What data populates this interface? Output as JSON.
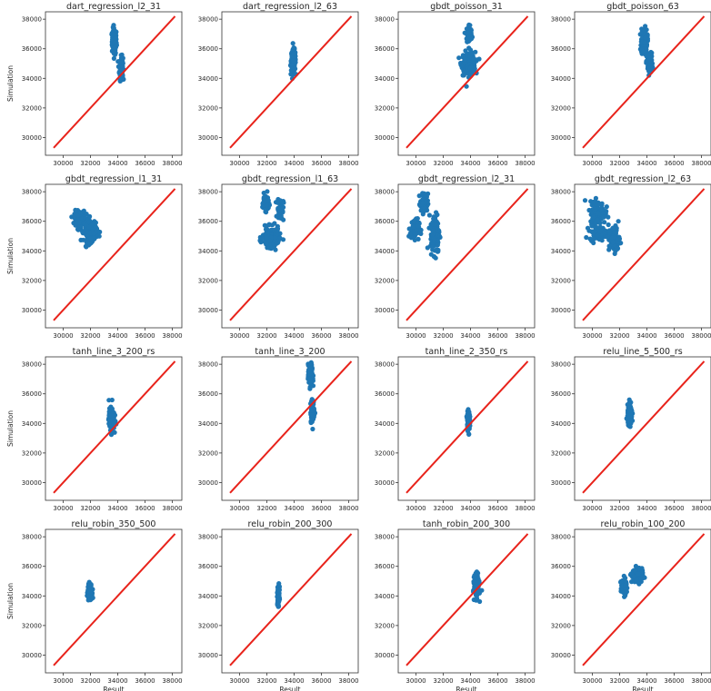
{
  "colors": {
    "scatter": "#1f77b4",
    "line": "#e8231b",
    "axes": "#333333"
  },
  "axis_labels": {
    "x": "Result",
    "y": "Simulation"
  },
  "chart_data": [
    {
      "type": "scatter",
      "title": "dart_regression_l2_31",
      "xlabel": "",
      "ylabel": "Simulation",
      "xlim": [
        28700,
        38700
      ],
      "ylim": [
        28800,
        38500
      ],
      "xticks": [
        30000,
        32000,
        34000,
        36000,
        38000
      ],
      "yticks": [
        30000,
        32000,
        34000,
        36000,
        38000
      ],
      "clusters": [
        {
          "cx": 33750,
          "cy": 36500,
          "sx": 150,
          "sy": 800,
          "n": 140
        },
        {
          "cx": 34250,
          "cy": 34700,
          "sx": 120,
          "sy": 700,
          "n": 110
        }
      ],
      "identity_line": [
        29300,
        38200
      ],
      "grid": false
    },
    {
      "type": "scatter",
      "title": "dart_regression_l2_63",
      "xlabel": "",
      "ylabel": "",
      "xlim": [
        28700,
        38700
      ],
      "ylim": [
        28800,
        38500
      ],
      "xticks": [
        30000,
        32000,
        34000,
        36000,
        38000
      ],
      "yticks": [
        30000,
        32000,
        34000,
        36000,
        38000
      ],
      "clusters": [
        {
          "cx": 33950,
          "cy": 35200,
          "sx": 150,
          "sy": 650,
          "n": 200
        }
      ],
      "identity_line": [
        29300,
        38200
      ],
      "grid": false
    },
    {
      "type": "scatter",
      "title": "gbdt_poisson_31",
      "xlabel": "",
      "ylabel": "",
      "xlim": [
        28700,
        38700
      ],
      "ylim": [
        28800,
        38500
      ],
      "xticks": [
        30000,
        32000,
        34000,
        36000,
        38000
      ],
      "yticks": [
        30000,
        32000,
        34000,
        36000,
        38000
      ],
      "clusters": [
        {
          "cx": 33850,
          "cy": 35000,
          "sx": 450,
          "sy": 700,
          "n": 180
        },
        {
          "cx": 33900,
          "cy": 37000,
          "sx": 200,
          "sy": 600,
          "n": 60
        }
      ],
      "identity_line": [
        29300,
        38200
      ],
      "grid": false
    },
    {
      "type": "scatter",
      "title": "gbdt_poisson_63",
      "xlabel": "",
      "ylabel": "",
      "xlim": [
        28700,
        38700
      ],
      "ylim": [
        28800,
        38500
      ],
      "xticks": [
        30000,
        32000,
        34000,
        36000,
        38000
      ],
      "yticks": [
        30000,
        32000,
        34000,
        36000,
        38000
      ],
      "clusters": [
        {
          "cx": 33800,
          "cy": 36500,
          "sx": 200,
          "sy": 800,
          "n": 120
        },
        {
          "cx": 34200,
          "cy": 35000,
          "sx": 200,
          "sy": 650,
          "n": 100
        }
      ],
      "identity_line": [
        29300,
        38200
      ],
      "grid": false
    },
    {
      "type": "scatter",
      "title": "gbdt_regression_l1_31",
      "xlabel": "",
      "ylabel": "Simulation",
      "xlim": [
        28700,
        38700
      ],
      "ylim": [
        28800,
        38500
      ],
      "xticks": [
        30000,
        32000,
        34000,
        36000,
        38000
      ],
      "yticks": [
        30000,
        32000,
        34000,
        36000,
        38000
      ],
      "clusters": [
        {
          "cx": 31200,
          "cy": 36200,
          "sx": 350,
          "sy": 450,
          "n": 110
        },
        {
          "cx": 32000,
          "cy": 35400,
          "sx": 450,
          "sy": 700,
          "n": 160
        }
      ],
      "identity_line": [
        29300,
        38200
      ],
      "grid": false
    },
    {
      "type": "scatter",
      "title": "gbdt_regression_l1_63",
      "xlabel": "",
      "ylabel": "",
      "xlim": [
        28700,
        38700
      ],
      "ylim": [
        28800,
        38500
      ],
      "xticks": [
        30000,
        32000,
        34000,
        36000,
        38000
      ],
      "yticks": [
        30000,
        32000,
        34000,
        36000,
        38000
      ],
      "clusters": [
        {
          "cx": 31900,
          "cy": 37300,
          "sx": 200,
          "sy": 500,
          "n": 70
        },
        {
          "cx": 32300,
          "cy": 34900,
          "sx": 550,
          "sy": 600,
          "n": 150
        },
        {
          "cx": 33000,
          "cy": 36800,
          "sx": 200,
          "sy": 700,
          "n": 60
        }
      ],
      "identity_line": [
        29300,
        38200
      ],
      "grid": false
    },
    {
      "type": "scatter",
      "title": "gbdt_regression_l2_31",
      "xlabel": "",
      "ylabel": "",
      "xlim": [
        28700,
        38700
      ],
      "ylim": [
        28800,
        38500
      ],
      "xticks": [
        30000,
        32000,
        34000,
        36000,
        38000
      ],
      "yticks": [
        30000,
        32000,
        34000,
        36000,
        38000
      ],
      "clusters": [
        {
          "cx": 29900,
          "cy": 35500,
          "sx": 300,
          "sy": 600,
          "n": 90
        },
        {
          "cx": 30600,
          "cy": 37200,
          "sx": 250,
          "sy": 600,
          "n": 70
        },
        {
          "cx": 31400,
          "cy": 35200,
          "sx": 300,
          "sy": 1200,
          "n": 140
        }
      ],
      "identity_line": [
        29300,
        38200
      ],
      "grid": false
    },
    {
      "type": "scatter",
      "title": "gbdt_regression_l2_63",
      "xlabel": "",
      "ylabel": "",
      "xlim": [
        28700,
        38700
      ],
      "ylim": [
        28800,
        38500
      ],
      "xticks": [
        30000,
        32000,
        34000,
        36000,
        38000
      ],
      "yticks": [
        30000,
        32000,
        34000,
        36000,
        38000
      ],
      "clusters": [
        {
          "cx": 30400,
          "cy": 36600,
          "sx": 500,
          "sy": 700,
          "n": 140
        },
        {
          "cx": 30400,
          "cy": 35200,
          "sx": 550,
          "sy": 400,
          "n": 90
        },
        {
          "cx": 31600,
          "cy": 34800,
          "sx": 350,
          "sy": 800,
          "n": 110
        }
      ],
      "identity_line": [
        29300,
        38200
      ],
      "grid": false
    },
    {
      "type": "scatter",
      "title": "tanh_line_3_200_rs",
      "xlabel": "",
      "ylabel": "Simulation",
      "xlim": [
        28700,
        38700
      ],
      "ylim": [
        28800,
        38500
      ],
      "xticks": [
        30000,
        32000,
        34000,
        36000,
        38000
      ],
      "yticks": [
        30000,
        32000,
        34000,
        36000,
        38000
      ],
      "clusters": [
        {
          "cx": 33550,
          "cy": 34300,
          "sx": 180,
          "sy": 650,
          "n": 200
        }
      ],
      "identity_line": [
        29300,
        38200
      ],
      "grid": false
    },
    {
      "type": "scatter",
      "title": "tanh_line_3_200",
      "xlabel": "",
      "ylabel": "",
      "xlim": [
        28700,
        38700
      ],
      "ylim": [
        28800,
        38500
      ],
      "xticks": [
        30000,
        32000,
        34000,
        36000,
        38000
      ],
      "yticks": [
        30000,
        32000,
        34000,
        36000,
        38000
      ],
      "clusters": [
        {
          "cx": 35200,
          "cy": 37200,
          "sx": 150,
          "sy": 700,
          "n": 130
        },
        {
          "cx": 35350,
          "cy": 34800,
          "sx": 130,
          "sy": 700,
          "n": 100
        }
      ],
      "identity_line": [
        29300,
        38200
      ],
      "grid": false
    },
    {
      "type": "scatter",
      "title": "tanh_line_2_350_rs",
      "xlabel": "",
      "ylabel": "",
      "xlim": [
        28700,
        38700
      ],
      "ylim": [
        28800,
        38500
      ],
      "xticks": [
        30000,
        32000,
        34000,
        36000,
        38000
      ],
      "yticks": [
        30000,
        32000,
        34000,
        36000,
        38000
      ],
      "clusters": [
        {
          "cx": 33850,
          "cy": 34200,
          "sx": 80,
          "sy": 550,
          "n": 180
        }
      ],
      "identity_line": [
        29300,
        38200
      ],
      "grid": false
    },
    {
      "type": "scatter",
      "title": "relu_line_5_500_rs",
      "xlabel": "",
      "ylabel": "",
      "xlim": [
        28700,
        38700
      ],
      "ylim": [
        28800,
        38500
      ],
      "xticks": [
        30000,
        32000,
        34000,
        36000,
        38000
      ],
      "yticks": [
        30000,
        32000,
        34000,
        36000,
        38000
      ],
      "clusters": [
        {
          "cx": 32750,
          "cy": 34600,
          "sx": 150,
          "sy": 550,
          "n": 180
        }
      ],
      "identity_line": [
        29300,
        38200
      ],
      "grid": false
    },
    {
      "type": "scatter",
      "title": "relu_robin_350_500",
      "xlabel": "Result",
      "ylabel": "Simulation",
      "xlim": [
        28700,
        38700
      ],
      "ylim": [
        28800,
        38500
      ],
      "xticks": [
        30000,
        32000,
        34000,
        36000,
        38000
      ],
      "yticks": [
        30000,
        32000,
        34000,
        36000,
        38000
      ],
      "clusters": [
        {
          "cx": 31950,
          "cy": 34300,
          "sx": 130,
          "sy": 450,
          "n": 160
        }
      ],
      "identity_line": [
        29300,
        38200
      ],
      "grid": false
    },
    {
      "type": "scatter",
      "title": "relu_robin_200_300",
      "xlabel": "Result",
      "ylabel": "",
      "xlim": [
        28700,
        38700
      ],
      "ylim": [
        28800,
        38500
      ],
      "xticks": [
        30000,
        32000,
        34000,
        36000,
        38000
      ],
      "yticks": [
        30000,
        32000,
        34000,
        36000,
        38000
      ],
      "clusters": [
        {
          "cx": 32850,
          "cy": 34000,
          "sx": 60,
          "sy": 550,
          "n": 160
        }
      ],
      "identity_line": [
        29300,
        38200
      ],
      "grid": false
    },
    {
      "type": "scatter",
      "title": "tanh_robin_200_300",
      "xlabel": "Result",
      "ylabel": "",
      "xlim": [
        28700,
        38700
      ],
      "ylim": [
        28800,
        38500
      ],
      "xticks": [
        30000,
        32000,
        34000,
        36000,
        38000
      ],
      "yticks": [
        30000,
        32000,
        34000,
        36000,
        38000
      ],
      "clusters": [
        {
          "cx": 34450,
          "cy": 34700,
          "sx": 160,
          "sy": 650,
          "n": 180
        }
      ],
      "identity_line": [
        29300,
        38200
      ],
      "grid": false
    },
    {
      "type": "scatter",
      "title": "relu_robin_100_200",
      "xlabel": "Result",
      "ylabel": "",
      "xlim": [
        28700,
        38700
      ],
      "ylim": [
        28800,
        38500
      ],
      "xticks": [
        30000,
        32000,
        34000,
        36000,
        38000
      ],
      "yticks": [
        30000,
        32000,
        34000,
        36000,
        38000
      ],
      "clusters": [
        {
          "cx": 32300,
          "cy": 34600,
          "sx": 180,
          "sy": 500,
          "n": 90
        },
        {
          "cx": 33300,
          "cy": 35400,
          "sx": 400,
          "sy": 450,
          "n": 80
        }
      ],
      "identity_line": [
        29300,
        38200
      ],
      "grid": false
    }
  ]
}
